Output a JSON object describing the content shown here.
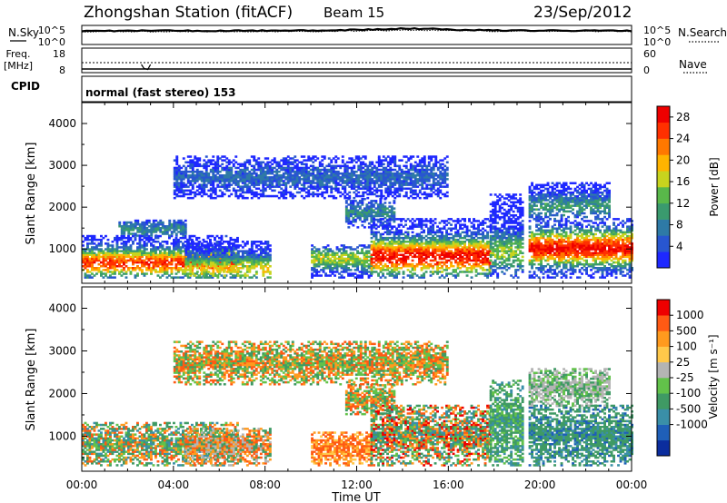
{
  "header": {
    "station": "Zhongshan Station (fitACF)",
    "beam": "Beam 15",
    "date": "23/Sep/2012"
  },
  "chart_data": [
    {
      "type": "line",
      "panel": "noise",
      "left_label": "N.Sky",
      "right_label": "N.Search",
      "left_ticks": [
        "10^5",
        "10^0"
      ],
      "right_ticks": [
        "10^5",
        "10^0"
      ],
      "scale": "log",
      "ylim": [
        1,
        100000
      ],
      "x_hours": [
        0,
        2,
        4,
        6,
        8,
        10,
        12,
        13,
        14,
        15,
        16,
        18,
        20,
        22,
        24
      ],
      "series": [
        {
          "values": [
            5000,
            5200,
            5400,
            5300,
            5500,
            6000,
            9000,
            14000,
            22000,
            20000,
            12000,
            7000,
            6000,
            5500,
            5200
          ]
        },
        {
          "values": [
            3000,
            3100,
            3200,
            3100,
            3300,
            3500,
            4500,
            6000,
            8000,
            7500,
            5500,
            4000,
            3600,
            3400,
            3200
          ]
        }
      ]
    },
    {
      "type": "line",
      "panel": "frequency",
      "left_label_line1": "Freq.",
      "left_label_line2": "[MHz]",
      "right_label": "Nave",
      "left_ticks": [
        "18",
        "8"
      ],
      "right_ticks": [
        "60",
        "0"
      ],
      "ylim": [
        8,
        18
      ],
      "freq_mhz": 12,
      "nave_dip_hours": [
        2.6,
        3.0
      ],
      "nave_dip_mhz": 11
    },
    {
      "type": "table",
      "panel": "cpid",
      "label": "CPID",
      "text": "normal (fast stereo) 153"
    },
    {
      "type": "heatmap",
      "panel": "power",
      "ylabel": "Slant Range [km]",
      "xlabel": "",
      "yticks": [
        "1000",
        "2000",
        "3000",
        "4000"
      ],
      "ylim": [
        180,
        4500
      ],
      "xlim": [
        0,
        24
      ],
      "colorbar_label": "Power [dB]",
      "colorbar_ticks": [
        "4",
        "8",
        "12",
        "16",
        "20",
        "24",
        "28"
      ],
      "colorbar_range": [
        0,
        30
      ],
      "colors": [
        "#1e28ff",
        "#2856d0",
        "#2e7aa6",
        "#3a9a6e",
        "#59b84a",
        "#c8d41e",
        "#ffb400",
        "#ff7800",
        "#ff3000",
        "#ee0000"
      ],
      "regions": [
        {
          "x0": 0.0,
          "x1": 6.8,
          "y0": 300,
          "y1": 1300,
          "core": 650,
          "peak": 26,
          "width": 300
        },
        {
          "x0": 1.6,
          "x1": 4.5,
          "y0": 1300,
          "y1": 1700,
          "core": 1450,
          "peak": 9,
          "width": 200
        },
        {
          "x0": 4.5,
          "x1": 8.2,
          "y0": 300,
          "y1": 1200,
          "core": 500,
          "peak": 18,
          "width": 300
        },
        {
          "x0": 10.0,
          "x1": 12.6,
          "y0": 300,
          "y1": 1100,
          "core": 750,
          "peak": 16,
          "width": 250
        },
        {
          "x0": 11.5,
          "x1": 13.6,
          "y0": 1500,
          "y1": 2200,
          "core": 1850,
          "peak": 9,
          "width": 250
        },
        {
          "x0": 12.6,
          "x1": 17.8,
          "y0": 300,
          "y1": 1700,
          "core": 800,
          "peak": 28,
          "width": 400
        },
        {
          "x0": 17.8,
          "x1": 19.2,
          "y0": 300,
          "y1": 2300,
          "core": 900,
          "peak": 14,
          "width": 450
        },
        {
          "x0": 19.5,
          "x1": 24.0,
          "y0": 300,
          "y1": 1700,
          "core": 1000,
          "peak": 28,
          "width": 400
        },
        {
          "x0": 19.5,
          "x1": 23.0,
          "y0": 1700,
          "y1": 2600,
          "core": 2000,
          "peak": 10,
          "width": 300
        },
        {
          "x0": 4.0,
          "x1": 16.0,
          "y0": 2200,
          "y1": 3200,
          "core": 2700,
          "peak": 6,
          "width": 300
        }
      ]
    },
    {
      "type": "heatmap",
      "panel": "velocity",
      "ylabel": "Slant Range [km]",
      "xlabel": "Time UT",
      "xticks": [
        "00:00",
        "04:00",
        "08:00",
        "12:00",
        "16:00",
        "20:00",
        "00:00"
      ],
      "yticks": [
        "1000",
        "2000",
        "3000",
        "4000"
      ],
      "ylim": [
        180,
        4500
      ],
      "xlim": [
        0,
        24
      ],
      "colorbar_label": "Velocity [m s⁻¹]",
      "colorbar_ticks": [
        "1000",
        "500",
        "100",
        "25",
        "-25",
        "-100",
        "-500",
        "-1000"
      ],
      "colors": [
        "#0b2d9e",
        "#1f5fb8",
        "#3a8fa8",
        "#3f9a64",
        "#62c24a",
        "#b4b4b4",
        "#ffc84a",
        "#ff9a1e",
        "#ff5a14",
        "#ee0000"
      ],
      "regions": [
        {
          "x0": 0.0,
          "x1": 6.8,
          "y0": 300,
          "y1": 1300,
          "mix": [
            3,
            3,
            8,
            7,
            4,
            2
          ]
        },
        {
          "x0": 4.5,
          "x1": 8.2,
          "y0": 300,
          "y1": 1200,
          "mix": [
            7,
            8,
            3,
            5
          ]
        },
        {
          "x0": 10.0,
          "x1": 12.6,
          "y0": 300,
          "y1": 1100,
          "mix": [
            8,
            7,
            8,
            6
          ]
        },
        {
          "x0": 11.5,
          "x1": 13.6,
          "y0": 1500,
          "y1": 2200,
          "mix": [
            7,
            4,
            8,
            3
          ]
        },
        {
          "x0": 12.6,
          "x1": 17.8,
          "y0": 300,
          "y1": 1700,
          "mix": [
            3,
            4,
            7,
            8,
            3,
            2,
            9
          ]
        },
        {
          "x0": 17.8,
          "x1": 19.2,
          "y0": 300,
          "y1": 2300,
          "mix": [
            3,
            3,
            2,
            4
          ]
        },
        {
          "x0": 19.5,
          "x1": 24.0,
          "y0": 300,
          "y1": 1700,
          "mix": [
            3,
            3,
            2,
            3,
            1
          ]
        },
        {
          "x0": 19.5,
          "x1": 23.0,
          "y0": 1700,
          "y1": 2600,
          "mix": [
            5,
            4,
            5,
            3
          ]
        },
        {
          "x0": 4.0,
          "x1": 16.0,
          "y0": 2200,
          "y1": 3200,
          "mix": [
            4,
            7,
            3,
            8
          ]
        }
      ]
    }
  ]
}
